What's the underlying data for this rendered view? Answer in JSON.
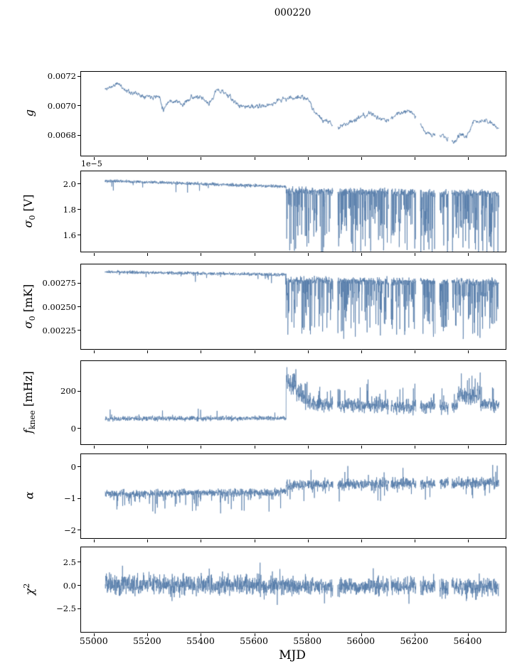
{
  "chart_data": {
    "type": "line",
    "title": "000220",
    "xlabel": "MJD",
    "line_color": "#4f77a6",
    "axis_color": "#000000",
    "xlim": [
      54950,
      56540
    ],
    "x_range_data": [
      55040,
      56515
    ],
    "era_boundary": 55718,
    "seed": 11,
    "xticks": [
      {
        "v": 55000,
        "label": "55000"
      },
      {
        "v": 55200,
        "label": "55200"
      },
      {
        "v": 55400,
        "label": "55400"
      },
      {
        "v": 55600,
        "label": "55600"
      },
      {
        "v": 55800,
        "label": "55800"
      },
      {
        "v": 56000,
        "label": "56000"
      },
      {
        "v": 56200,
        "label": "56200"
      },
      {
        "v": 56400,
        "label": "56400"
      }
    ],
    "data_gaps": [
      [
        55893,
        55910
      ],
      [
        56102,
        56110
      ],
      [
        56204,
        56220
      ],
      [
        56276,
        56292
      ],
      [
        56326,
        56338
      ]
    ],
    "panels": [
      {
        "name": "g",
        "ylabel": {
          "main": "g",
          "sub": "",
          "sup": "",
          "post": ""
        },
        "ylim": [
          0.00666,
          0.00723
        ],
        "yticks": [
          {
            "v": 0.0068,
            "label": "0.0068"
          },
          {
            "v": 0.007,
            "label": "0.0070"
          },
          {
            "v": 0.0072,
            "label": "0.0072"
          }
        ],
        "offset_text": "",
        "model": {
          "type": "waypoints",
          "step": 1.2,
          "noise": 2e-05,
          "points": [
            [
              55040,
              0.00711
            ],
            [
              55090,
              0.00715
            ],
            [
              55120,
              0.0071
            ],
            [
              55180,
              0.00707
            ],
            [
              55245,
              0.00706
            ],
            [
              55258,
              0.00697
            ],
            [
              55275,
              0.00703
            ],
            [
              55310,
              0.00703
            ],
            [
              55330,
              0.007
            ],
            [
              55360,
              0.00706
            ],
            [
              55400,
              0.00705
            ],
            [
              55430,
              0.00701
            ],
            [
              55455,
              0.0071
            ],
            [
              55480,
              0.0071
            ],
            [
              55505,
              0.00706
            ],
            [
              55540,
              0.007
            ],
            [
              55600,
              0.00699
            ],
            [
              55650,
              0.007
            ],
            [
              55695,
              0.00704
            ],
            [
              55730,
              0.00705
            ],
            [
              55775,
              0.00706
            ],
            [
              55805,
              0.00703
            ],
            [
              55825,
              0.00696
            ],
            [
              55855,
              0.0069
            ],
            [
              55885,
              0.00688
            ],
            [
              55910,
              0.00685
            ],
            [
              55955,
              0.00689
            ],
            [
              56000,
              0.00692
            ],
            [
              56035,
              0.00695
            ],
            [
              56065,
              0.00691
            ],
            [
              56100,
              0.0069
            ],
            [
              56140,
              0.00695
            ],
            [
              56185,
              0.00697
            ],
            [
              56215,
              0.00689
            ],
            [
              56240,
              0.00682
            ],
            [
              56270,
              0.0068
            ],
            [
              56310,
              0.00679
            ],
            [
              56345,
              0.00674
            ],
            [
              56370,
              0.00681
            ],
            [
              56395,
              0.00679
            ],
            [
              56420,
              0.00689
            ],
            [
              56455,
              0.0069
            ],
            [
              56485,
              0.00688
            ],
            [
              56515,
              0.00684
            ]
          ]
        }
      },
      {
        "name": "sigma0-V",
        "ylabel": {
          "main": "σ",
          "sub": "0",
          "sup": "",
          "post": " [V]"
        },
        "ylim": [
          1.47,
          2.1
        ],
        "yticks": [
          {
            "v": 1.6,
            "label": "1.6"
          },
          {
            "v": 1.8,
            "label": "1.8"
          },
          {
            "v": 2.0,
            "label": "2.0"
          }
        ],
        "offset_text": "1e−5",
        "model": {
          "type": "segments",
          "step": 0.7,
          "segments": [
            {
              "x0": 55040,
              "x1": 55718,
              "m0": 2.025,
              "m1": 1.98,
              "noise": 0.018,
              "spike_p": 0.012,
              "spike_s": 0.1,
              "dir": -1
            },
            {
              "x0": 55718,
              "x1": 56515,
              "m0": 1.945,
              "m1": 1.925,
              "noise": 0.045,
              "spike_p": 0.3,
              "spike_s": 0.5,
              "dir": -1
            }
          ]
        }
      },
      {
        "name": "sigma0-mK",
        "ylabel": {
          "main": "σ",
          "sub": "0",
          "sup": "",
          "post": " [mK]"
        },
        "ylim": [
          0.00205,
          0.00295
        ],
        "yticks": [
          {
            "v": 0.00225,
            "label": "0.00225"
          },
          {
            "v": 0.0025,
            "label": "0.00250"
          },
          {
            "v": 0.00275,
            "label": "0.00275"
          }
        ],
        "offset_text": "",
        "model": {
          "type": "segments",
          "step": 0.7,
          "segments": [
            {
              "x0": 55040,
              "x1": 55718,
              "m0": 0.00287,
              "m1": 0.00284,
              "noise": 2.5e-05,
              "spike_p": 0.012,
              "spike_s": 0.0001,
              "dir": -1
            },
            {
              "x0": 55718,
              "x1": 56515,
              "m0": 0.00278,
              "m1": 0.00276,
              "noise": 6e-05,
              "spike_p": 0.3,
              "spike_s": 0.0006,
              "dir": -1
            }
          ]
        }
      },
      {
        "name": "f-knee",
        "ylabel": {
          "main": "f",
          "sub": "knee",
          "sup": "",
          "post": " [mHz]"
        },
        "ylim": [
          -85,
          362
        ],
        "yticks": [
          {
            "v": 0,
            "label": "0"
          },
          {
            "v": 200,
            "label": "200"
          }
        ],
        "offset_text": "",
        "model": {
          "type": "segments",
          "step": 0.7,
          "segments": [
            {
              "x0": 55040,
              "x1": 55718,
              "m0": 52,
              "m1": 55,
              "noise": 18,
              "spike_p": 0.03,
              "spike_s": 60,
              "dir": 1
            },
            {
              "x0": 55718,
              "x1": 55800,
              "m0": 250,
              "m1": 150,
              "noise": 80,
              "spike_p": 0.2,
              "spike_s": 100,
              "dir": 1
            },
            {
              "x0": 55800,
              "x1": 56100,
              "m0": 130,
              "m1": 120,
              "noise": 55,
              "spike_p": 0.08,
              "spike_s": 130,
              "dir": 1
            },
            {
              "x0": 56100,
              "x1": 56360,
              "m0": 115,
              "m1": 115,
              "noise": 50,
              "spike_p": 0.08,
              "spike_s": 120,
              "dir": 1
            },
            {
              "x0": 56360,
              "x1": 56445,
              "m0": 165,
              "m1": 170,
              "noise": 75,
              "spike_p": 0.12,
              "spike_s": 140,
              "dir": 1
            },
            {
              "x0": 56445,
              "x1": 56515,
              "m0": 130,
              "m1": 120,
              "noise": 55,
              "spike_p": 0.08,
              "spike_s": 110,
              "dir": 1
            }
          ]
        }
      },
      {
        "name": "alpha",
        "ylabel": {
          "main": "α",
          "sub": "",
          "sup": "",
          "post": ""
        },
        "ylim": [
          -2.25,
          0.4
        ],
        "yticks": [
          {
            "v": -2,
            "label": "−2"
          },
          {
            "v": -1,
            "label": "−1"
          },
          {
            "v": 0,
            "label": "0"
          }
        ],
        "offset_text": "",
        "model": {
          "type": "segments",
          "step": 0.7,
          "segments": [
            {
              "x0": 55040,
              "x1": 55718,
              "m0": -0.85,
              "m1": -0.8,
              "noise": 0.17,
              "spike_p": 0.08,
              "spike_s": 0.6,
              "dir": -1
            },
            {
              "x0": 55718,
              "x1": 56515,
              "m0": -0.58,
              "m1": -0.5,
              "noise": 0.25,
              "spike_p": 0.06,
              "spike_s": 0.6,
              "dir": 0
            }
          ]
        }
      },
      {
        "name": "chi2",
        "ylabel": {
          "main": "χ",
          "sub": "",
          "sup": "2",
          "post": ""
        },
        "ylim": [
          -5.0,
          4.1
        ],
        "yticks": [
          {
            "v": -2.5,
            "label": "−2.5"
          },
          {
            "v": 0,
            "label": "0.0"
          },
          {
            "v": 2.5,
            "label": "2.5"
          }
        ],
        "offset_text": "",
        "model": {
          "type": "segments",
          "step": 0.7,
          "segments": [
            {
              "x0": 55040,
              "x1": 55718,
              "m0": 0.1,
              "m1": 0.0,
              "noise": 1.6,
              "spike_p": 0.04,
              "spike_s": 1.5,
              "dir": 0
            },
            {
              "x0": 55718,
              "x1": 56515,
              "m0": -0.1,
              "m1": -0.1,
              "noise": 1.3,
              "spike_p": 0.04,
              "spike_s": 1.6,
              "dir": 0
            }
          ]
        }
      }
    ]
  }
}
